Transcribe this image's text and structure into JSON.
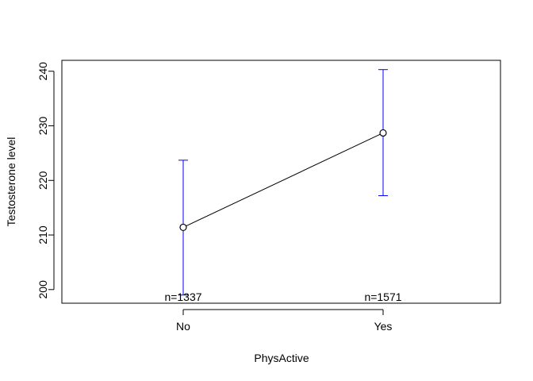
{
  "chart_data": {
    "type": "line",
    "xlabel": "PhysActive",
    "ylabel": "Testosterone level",
    "categories": [
      "No",
      "Yes"
    ],
    "means": [
      211.4,
      228.7
    ],
    "ci_lower": [
      199.0,
      217.2
    ],
    "ci_upper": [
      223.7,
      240.3
    ],
    "n_labels": [
      "n=1337",
      "n=1571"
    ],
    "ylim": [
      197.5,
      242.0
    ],
    "yticks": [
      200,
      210,
      220,
      230,
      240
    ],
    "grid": false,
    "colors": {
      "line": "#000000",
      "error_bars": "#0000ff"
    }
  }
}
